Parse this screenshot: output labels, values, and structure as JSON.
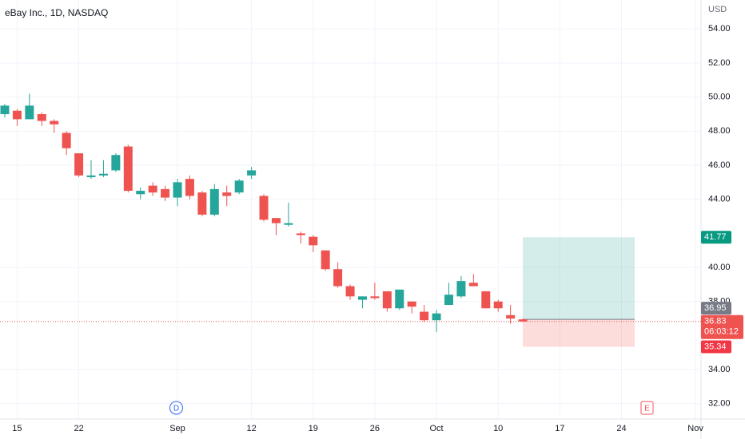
{
  "chart_data": {
    "type": "candlestick",
    "title": "eBay Inc., 1D, NASDAQ",
    "currency": "USD",
    "categories": [
      null,
      "15",
      null,
      null,
      null,
      null,
      "22",
      null,
      null,
      null,
      null,
      null,
      null,
      null,
      "Sep",
      null,
      null,
      null,
      null,
      null,
      "12",
      null,
      null,
      null,
      null,
      "19",
      null,
      null,
      null,
      null,
      "26",
      null,
      null,
      null,
      null,
      "Oct",
      null,
      null,
      null,
      null,
      "10",
      null,
      null,
      null,
      null,
      "17",
      null,
      null,
      null,
      null,
      "24",
      null,
      null,
      null,
      null,
      null,
      "Nov"
    ],
    "open": [
      49.0,
      49.2,
      48.7,
      49.0,
      48.6,
      47.9,
      46.7,
      45.3,
      45.4,
      45.7,
      47.1,
      44.3,
      44.8,
      44.6,
      44.1,
      45.2,
      44.4,
      43.1,
      44.4,
      44.4,
      45.4,
      44.2,
      42.9,
      42.5,
      42.0,
      41.8,
      41.0,
      39.9,
      38.9,
      38.1,
      38.3,
      38.6,
      37.6,
      38.0,
      37.4,
      36.9,
      37.8,
      38.3,
      39.1,
      38.6,
      38.0,
      37.2,
      36.95,
      null,
      null,
      null,
      null,
      null,
      null,
      null,
      null,
      null,
      null,
      null,
      null,
      null,
      null
    ],
    "high": [
      49.6,
      49.3,
      50.2,
      49.1,
      48.7,
      48.0,
      46.7,
      46.3,
      46.3,
      46.7,
      47.2,
      44.7,
      45.0,
      44.8,
      45.2,
      45.4,
      44.5,
      44.9,
      44.8,
      45.2,
      45.9,
      44.3,
      42.9,
      43.8,
      42.1,
      41.9,
      41.0,
      40.3,
      39.0,
      38.3,
      39.1,
      38.6,
      38.7,
      38.0,
      37.8,
      37.5,
      39.1,
      39.5,
      39.6,
      38.6,
      38.1,
      37.8,
      37.0,
      null,
      null,
      null,
      null,
      null,
      null,
      null,
      null,
      null,
      null,
      null,
      null,
      null,
      null
    ],
    "low": [
      48.8,
      48.3,
      48.7,
      48.3,
      47.9,
      46.6,
      45.3,
      45.2,
      45.3,
      45.6,
      44.4,
      44.0,
      44.2,
      43.9,
      43.6,
      44.0,
      43.0,
      43.0,
      43.6,
      44.3,
      45.2,
      42.7,
      41.9,
      42.4,
      41.4,
      40.9,
      39.8,
      38.8,
      38.1,
      37.6,
      38.1,
      37.4,
      37.5,
      37.3,
      36.8,
      36.2,
      37.8,
      38.2,
      38.9,
      37.6,
      37.4,
      36.7,
      36.8,
      null,
      null,
      null,
      null,
      null,
      null,
      null,
      null,
      null,
      null,
      null,
      null,
      null,
      null
    ],
    "close": [
      49.5,
      48.7,
      49.5,
      48.6,
      48.4,
      47.0,
      45.4,
      45.4,
      45.5,
      46.6,
      44.5,
      44.5,
      44.4,
      44.1,
      45.0,
      44.2,
      43.1,
      44.6,
      44.2,
      45.1,
      45.7,
      42.8,
      42.6,
      42.6,
      41.9,
      41.3,
      39.9,
      38.9,
      38.3,
      38.3,
      38.2,
      37.6,
      38.7,
      37.7,
      36.9,
      37.3,
      38.4,
      39.2,
      38.9,
      37.6,
      37.6,
      37.0,
      36.83,
      null,
      null,
      null,
      null,
      null,
      null,
      null,
      null,
      null,
      null,
      null,
      null,
      null,
      null
    ],
    "up_color": "#26a69a",
    "down_color": "#ef5350",
    "ylim": [
      31.1,
      55.7
    ],
    "yticks": [
      {
        "value": 54,
        "label": "54.00"
      },
      {
        "value": 52,
        "label": "52.00"
      },
      {
        "value": 50,
        "label": "50.00"
      },
      {
        "value": 48,
        "label": "48.00"
      },
      {
        "value": 46,
        "label": "46.00"
      },
      {
        "value": 44,
        "label": "44.00"
      },
      {
        "value": 40,
        "label": "40.00"
      },
      {
        "value": 38,
        "label": "38.00"
      },
      {
        "value": 34,
        "label": "34.00"
      },
      {
        "value": 32,
        "label": "32.00"
      }
    ],
    "grid": true,
    "last_price": 36.83,
    "countdown": "06:03:12",
    "position": {
      "target": 41.77,
      "entry": 36.95,
      "stop": 35.34
    },
    "markers": {
      "dividend": "D",
      "earnings": "E"
    }
  }
}
